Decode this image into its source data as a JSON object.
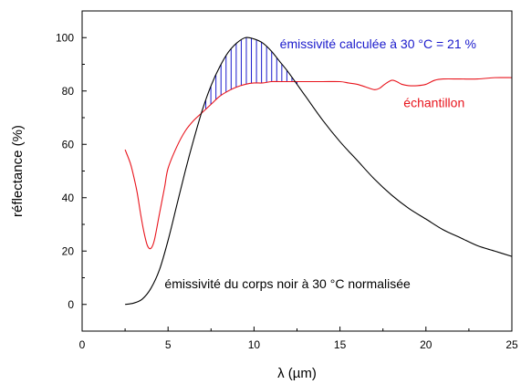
{
  "chart_data": {
    "type": "line",
    "title": "",
    "xlabel": "λ (µm)",
    "ylabel": "réflectance (%)",
    "xlim": [
      0,
      25
    ],
    "ylim": [
      -10,
      110
    ],
    "x_ticks": [
      0,
      5,
      10,
      15,
      20,
      25
    ],
    "y_ticks": [
      0,
      20,
      40,
      60,
      80,
      100
    ],
    "grid": false,
    "series": [
      {
        "name": "échantillon",
        "color": "#e8141c",
        "x": [
          2.5,
          2.8,
          3.0,
          3.2,
          3.4,
          3.6,
          3.8,
          4.0,
          4.2,
          4.5,
          4.8,
          5.0,
          5.5,
          6.0,
          6.5,
          7.0,
          7.5,
          8.0,
          8.5,
          9.0,
          9.5,
          10.0,
          10.5,
          11.0,
          11.5,
          12.0,
          13.0,
          14.0,
          15.0,
          15.5,
          16.0,
          16.5,
          17.0,
          17.3,
          17.6,
          18.0,
          18.3,
          18.6,
          19.0,
          19.5,
          20.0,
          20.5,
          21.0,
          22.0,
          23.0,
          24.0,
          25.0
        ],
        "y": [
          58,
          53,
          48,
          42,
          34,
          27,
          22,
          21,
          24,
          34,
          44,
          51,
          59,
          65,
          69,
          72,
          75,
          78,
          80,
          81.5,
          82.5,
          83,
          83,
          83.5,
          83.5,
          83.5,
          83.5,
          83.5,
          83.5,
          83,
          82.5,
          81.5,
          80.5,
          81,
          82.5,
          84,
          83.5,
          82.5,
          82,
          82,
          82.5,
          84,
          84.5,
          84.5,
          84.5,
          85,
          85
        ]
      },
      {
        "name": "émissivité du corps noir à 30 °C normalisée",
        "color": "#000000",
        "x": [
          2.5,
          3.0,
          3.5,
          4.0,
          4.5,
          5.0,
          5.5,
          6.0,
          6.5,
          7.0,
          7.5,
          8.0,
          8.5,
          9.0,
          9.5,
          10.0,
          10.5,
          11.0,
          11.5,
          12.0,
          13.0,
          14.0,
          15.0,
          16.0,
          17.0,
          18.0,
          19.0,
          20.0,
          21.0,
          22.0,
          23.0,
          24.0,
          25.0
        ],
        "y": [
          0,
          0.5,
          2,
          6,
          13,
          24,
          37,
          50,
          62,
          73,
          82,
          89,
          94.5,
          98,
          100,
          99.5,
          98,
          95,
          91,
          87,
          78,
          69,
          61,
          54,
          47,
          41,
          36,
          32,
          28,
          25,
          22,
          20,
          18
        ]
      }
    ],
    "hatched_region": {
      "x_from": 6.9,
      "x_to": 12.5,
      "color": "#1a1acc"
    },
    "annotations": [
      {
        "id": "emissivity",
        "text": "émissivité calculée à 30 °C = 21 %",
        "color": "#1a1acc",
        "x": 11.5,
        "y": 96
      },
      {
        "id": "sample",
        "text": "échantillon",
        "color": "#e8141c",
        "x": 18.7,
        "y": 74
      },
      {
        "id": "blackbody",
        "text": "émissivité du corps noir à 30 °C normalisée",
        "color": "#000000",
        "x": 4.8,
        "y": 6
      }
    ]
  }
}
